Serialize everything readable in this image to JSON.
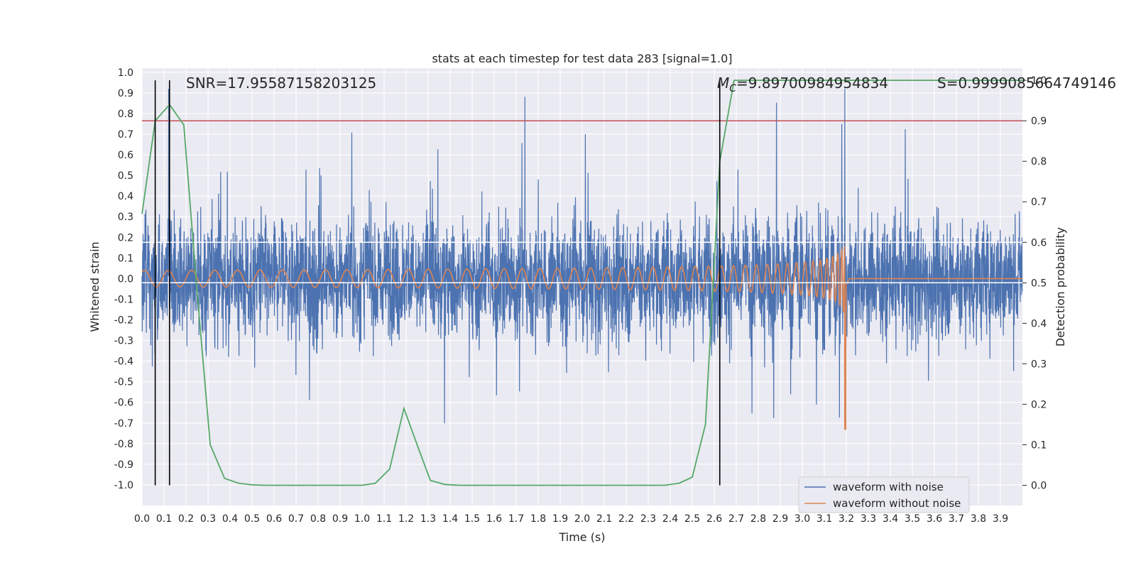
{
  "chart_data": {
    "type": "line",
    "title": "stats at each timestep for test data 283 [signal=1.0]",
    "xlabel": "Time (s)",
    "ylabel": "Whitened strain",
    "y2label": "Detection probability",
    "xlim": [
      0.0,
      4.0
    ],
    "ylim": [
      -1.1,
      1.02
    ],
    "y2lim": [
      -0.05,
      1.03
    ],
    "x_ticks": [
      "0.0",
      "0.1",
      "0.2",
      "0.3",
      "0.4",
      "0.5",
      "0.6",
      "0.7",
      "0.8",
      "0.9",
      "1.0",
      "1.1",
      "1.2",
      "1.3",
      "1.4",
      "1.5",
      "1.6",
      "1.7",
      "1.8",
      "1.9",
      "2.0",
      "2.1",
      "2.2",
      "2.3",
      "2.4",
      "2.5",
      "2.6",
      "2.7",
      "2.8",
      "2.9",
      "3.0",
      "3.1",
      "3.2",
      "3.3",
      "3.4",
      "3.5",
      "3.6",
      "3.7",
      "3.8",
      "3.9"
    ],
    "y_ticks": [
      "1.0",
      "0.9",
      "0.8",
      "0.7",
      "0.6",
      "0.5",
      "0.4",
      "0.3",
      "0.2",
      "0.1",
      "0.0",
      "-0.1",
      "-0.2",
      "-0.3",
      "-0.4",
      "-0.5",
      "-0.6",
      "-0.7",
      "-0.8",
      "-0.9",
      "-1.0"
    ],
    "y2_ticks": [
      "1.0",
      "0.9",
      "0.8",
      "0.7",
      "0.6",
      "0.5",
      "0.4",
      "0.3",
      "0.2",
      "0.1",
      "0.0"
    ],
    "grid": true,
    "legend_placement": "lower-right",
    "annotations": {
      "snr": "SNR=17.95587158203125",
      "mc_symbol": "M",
      "mc_sub": "C",
      "mc_value": "=9.89700984954834",
      "s": "S=0.9999085664749146"
    },
    "series": [
      {
        "name": "waveform with noise",
        "color": "#4c72b0",
        "kind": "noisy-strain",
        "amplitude_range": [
          -1.0,
          0.92
        ]
      },
      {
        "name": "waveform without noise",
        "color": "#dd8452",
        "kind": "chirp",
        "merger_time": 3.2,
        "initial_amplitude": 0.04,
        "peak_amplitude": 0.47,
        "min_value": -0.73
      }
    ],
    "detection_probability": {
      "color": "#55a868",
      "axis": "right",
      "x": [
        0.0,
        0.06,
        0.125,
        0.19,
        0.25,
        0.31,
        0.375,
        0.44,
        0.5,
        0.56,
        0.625,
        0.69,
        0.75,
        0.81,
        0.875,
        0.94,
        1.0,
        1.06,
        1.125,
        1.19,
        1.25,
        1.31,
        1.375,
        1.44,
        1.5,
        1.56,
        1.625,
        1.69,
        1.75,
        1.81,
        1.875,
        1.94,
        2.0,
        2.06,
        2.125,
        2.19,
        2.25,
        2.31,
        2.375,
        2.44,
        2.5,
        2.56,
        2.625,
        2.69,
        2.75,
        2.81,
        2.875,
        2.94,
        3.0,
        3.06,
        3.125,
        3.19,
        3.25,
        3.31,
        3.375,
        3.44,
        3.5,
        3.56,
        3.625,
        3.69,
        3.75,
        3.81,
        3.875,
        3.94,
        4.0
      ],
      "y": [
        0.67,
        0.9,
        0.94,
        0.89,
        0.48,
        0.1,
        0.017,
        0.005,
        0.001,
        0.0,
        0.0,
        0.0,
        0.0,
        0.0,
        0.0,
        0.0,
        0.0,
        0.005,
        0.04,
        0.19,
        0.1,
        0.012,
        0.002,
        0.0,
        0.0,
        0.0,
        0.0,
        0.0,
        0.0,
        0.0,
        0.0,
        0.0,
        0.0,
        0.0,
        0.0,
        0.0,
        0.0,
        0.0,
        0.0,
        0.005,
        0.02,
        0.15,
        0.8,
        1.0,
        1.0,
        1.0,
        1.0,
        1.0,
        1.0,
        1.0,
        1.0,
        1.0,
        1.0,
        1.0,
        1.0,
        1.0,
        1.0,
        1.0,
        1.0,
        1.0,
        1.0,
        1.0,
        1.0,
        1.0,
        1.0
      ]
    },
    "threshold_line": {
      "color": "#c44e52",
      "y2": 0.9
    },
    "white_reference_lines": {
      "y2": [
        0.6,
        0.5
      ]
    },
    "vertical_markers": {
      "color": "#000000",
      "x": [
        0.06,
        0.125,
        2.625
      ]
    }
  }
}
